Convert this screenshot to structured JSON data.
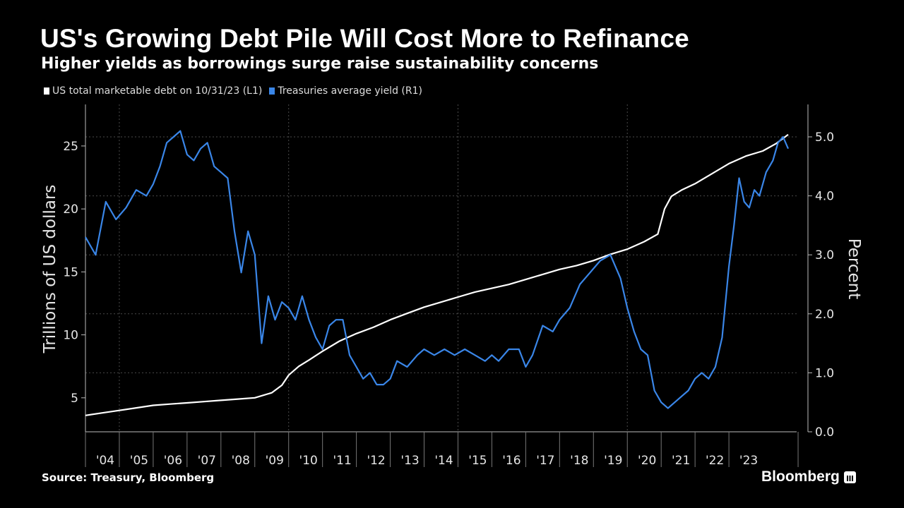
{
  "title": "US's Growing Debt Pile Will Cost More to Refinance",
  "subtitle": "Higher yields as borrowings surge raise sustainability concerns",
  "source": "Source: Treasury, Bloomberg",
  "brand": "Bloomberg",
  "colors": {
    "background": "#000000",
    "debt": "#ffffff",
    "yield": "#3a86e8",
    "grid": "#555555"
  },
  "chart_data": {
    "type": "line",
    "xlabel": "",
    "ylabel_left": "Trillions of US dollars",
    "ylabel_right": "Percent",
    "ylim_left": [
      2.3,
      28.3
    ],
    "ylim_right": [
      0.0,
      5.55
    ],
    "xlim": [
      2003.0,
      2024.0
    ],
    "x_tick_labels": [
      "'04",
      "'05",
      "'06",
      "'07",
      "'08",
      "'09",
      "'10",
      "'11",
      "'12",
      "'13",
      "'14",
      "'15",
      "'16",
      "'17",
      "'18",
      "'19",
      "'20",
      "'21",
      "'22",
      "'23"
    ],
    "y_left_ticks": [
      5,
      10,
      15,
      20,
      25
    ],
    "y_right_ticks": [
      "0.0",
      "1.0",
      "2.0",
      "3.0",
      "4.0",
      "5.0"
    ],
    "grid": true,
    "legend_position": "top-left",
    "series": [
      {
        "name": "US total marketable debt on 10/31/23 (L1)",
        "axis": "left",
        "color": "#ffffff",
        "x": [
          2003.0,
          2003.5,
          2004.0,
          2004.5,
          2005.0,
          2005.5,
          2006.0,
          2006.5,
          2007.0,
          2007.5,
          2008.0,
          2008.5,
          2008.8,
          2009.0,
          2009.3,
          2009.6,
          2010.0,
          2010.5,
          2011.0,
          2011.5,
          2012.0,
          2012.5,
          2013.0,
          2013.5,
          2014.0,
          2014.5,
          2015.0,
          2015.5,
          2016.0,
          2016.5,
          2017.0,
          2017.5,
          2018.0,
          2018.5,
          2019.0,
          2019.5,
          2019.9,
          2020.1,
          2020.3,
          2020.6,
          2021.0,
          2021.5,
          2022.0,
          2022.5,
          2023.0,
          2023.4,
          2023.75
        ],
        "values": [
          3.6,
          3.8,
          4.0,
          4.2,
          4.4,
          4.5,
          4.6,
          4.7,
          4.8,
          4.9,
          5.0,
          5.4,
          6.0,
          6.8,
          7.5,
          8.0,
          8.7,
          9.5,
          10.1,
          10.6,
          11.2,
          11.7,
          12.2,
          12.6,
          13.0,
          13.4,
          13.7,
          14.0,
          14.4,
          14.8,
          15.2,
          15.5,
          15.9,
          16.4,
          16.8,
          17.4,
          18.0,
          20.0,
          21.0,
          21.5,
          22.0,
          22.8,
          23.6,
          24.2,
          24.6,
          25.2,
          25.9
        ]
      },
      {
        "name": "Treasuries average yield (R1)",
        "axis": "right",
        "color": "#3a86e8",
        "x": [
          2003.0,
          2003.3,
          2003.6,
          2003.9,
          2004.2,
          2004.5,
          2004.8,
          2005.0,
          2005.2,
          2005.4,
          2005.6,
          2005.8,
          2006.0,
          2006.2,
          2006.4,
          2006.6,
          2006.8,
          2007.0,
          2007.2,
          2007.4,
          2007.6,
          2007.8,
          2008.0,
          2008.2,
          2008.4,
          2008.6,
          2008.8,
          2009.0,
          2009.2,
          2009.4,
          2009.6,
          2009.8,
          2010.0,
          2010.2,
          2010.4,
          2010.6,
          2010.8,
          2011.0,
          2011.2,
          2011.4,
          2011.6,
          2011.8,
          2012.0,
          2012.2,
          2012.5,
          2012.8,
          2013.0,
          2013.3,
          2013.6,
          2013.9,
          2014.2,
          2014.5,
          2014.8,
          2015.0,
          2015.2,
          2015.5,
          2015.8,
          2016.0,
          2016.2,
          2016.5,
          2016.8,
          2017.0,
          2017.3,
          2017.6,
          2017.9,
          2018.2,
          2018.5,
          2018.8,
          2019.0,
          2019.2,
          2019.4,
          2019.6,
          2019.8,
          2020.0,
          2020.2,
          2020.4,
          2020.6,
          2020.8,
          2021.0,
          2021.2,
          2021.4,
          2021.6,
          2021.8,
          2022.0,
          2022.15,
          2022.3,
          2022.45,
          2022.6,
          2022.75,
          2022.9,
          2023.1,
          2023.3,
          2023.45,
          2023.6,
          2023.75
        ],
        "values": [
          3.3,
          3.0,
          3.9,
          3.6,
          3.8,
          4.1,
          4.0,
          4.2,
          4.5,
          4.9,
          5.0,
          5.1,
          4.7,
          4.6,
          4.8,
          4.9,
          4.5,
          4.4,
          4.3,
          3.4,
          2.7,
          3.4,
          3.0,
          1.5,
          2.3,
          1.9,
          2.2,
          2.1,
          1.9,
          2.3,
          1.9,
          1.6,
          1.4,
          1.8,
          1.9,
          1.9,
          1.3,
          1.1,
          0.9,
          1.0,
          0.8,
          0.8,
          0.9,
          1.2,
          1.1,
          1.3,
          1.4,
          1.3,
          1.4,
          1.3,
          1.4,
          1.3,
          1.2,
          1.3,
          1.2,
          1.4,
          1.4,
          1.1,
          1.3,
          1.8,
          1.7,
          1.9,
          2.1,
          2.5,
          2.7,
          2.9,
          3.0,
          2.6,
          2.1,
          1.7,
          1.4,
          1.3,
          0.7,
          0.5,
          0.4,
          0.5,
          0.6,
          0.7,
          0.9,
          1.0,
          0.9,
          1.1,
          1.6,
          2.8,
          3.5,
          4.3,
          3.9,
          3.8,
          4.1,
          4.0,
          4.4,
          4.6,
          4.9,
          5.0,
          4.8
        ]
      }
    ]
  }
}
